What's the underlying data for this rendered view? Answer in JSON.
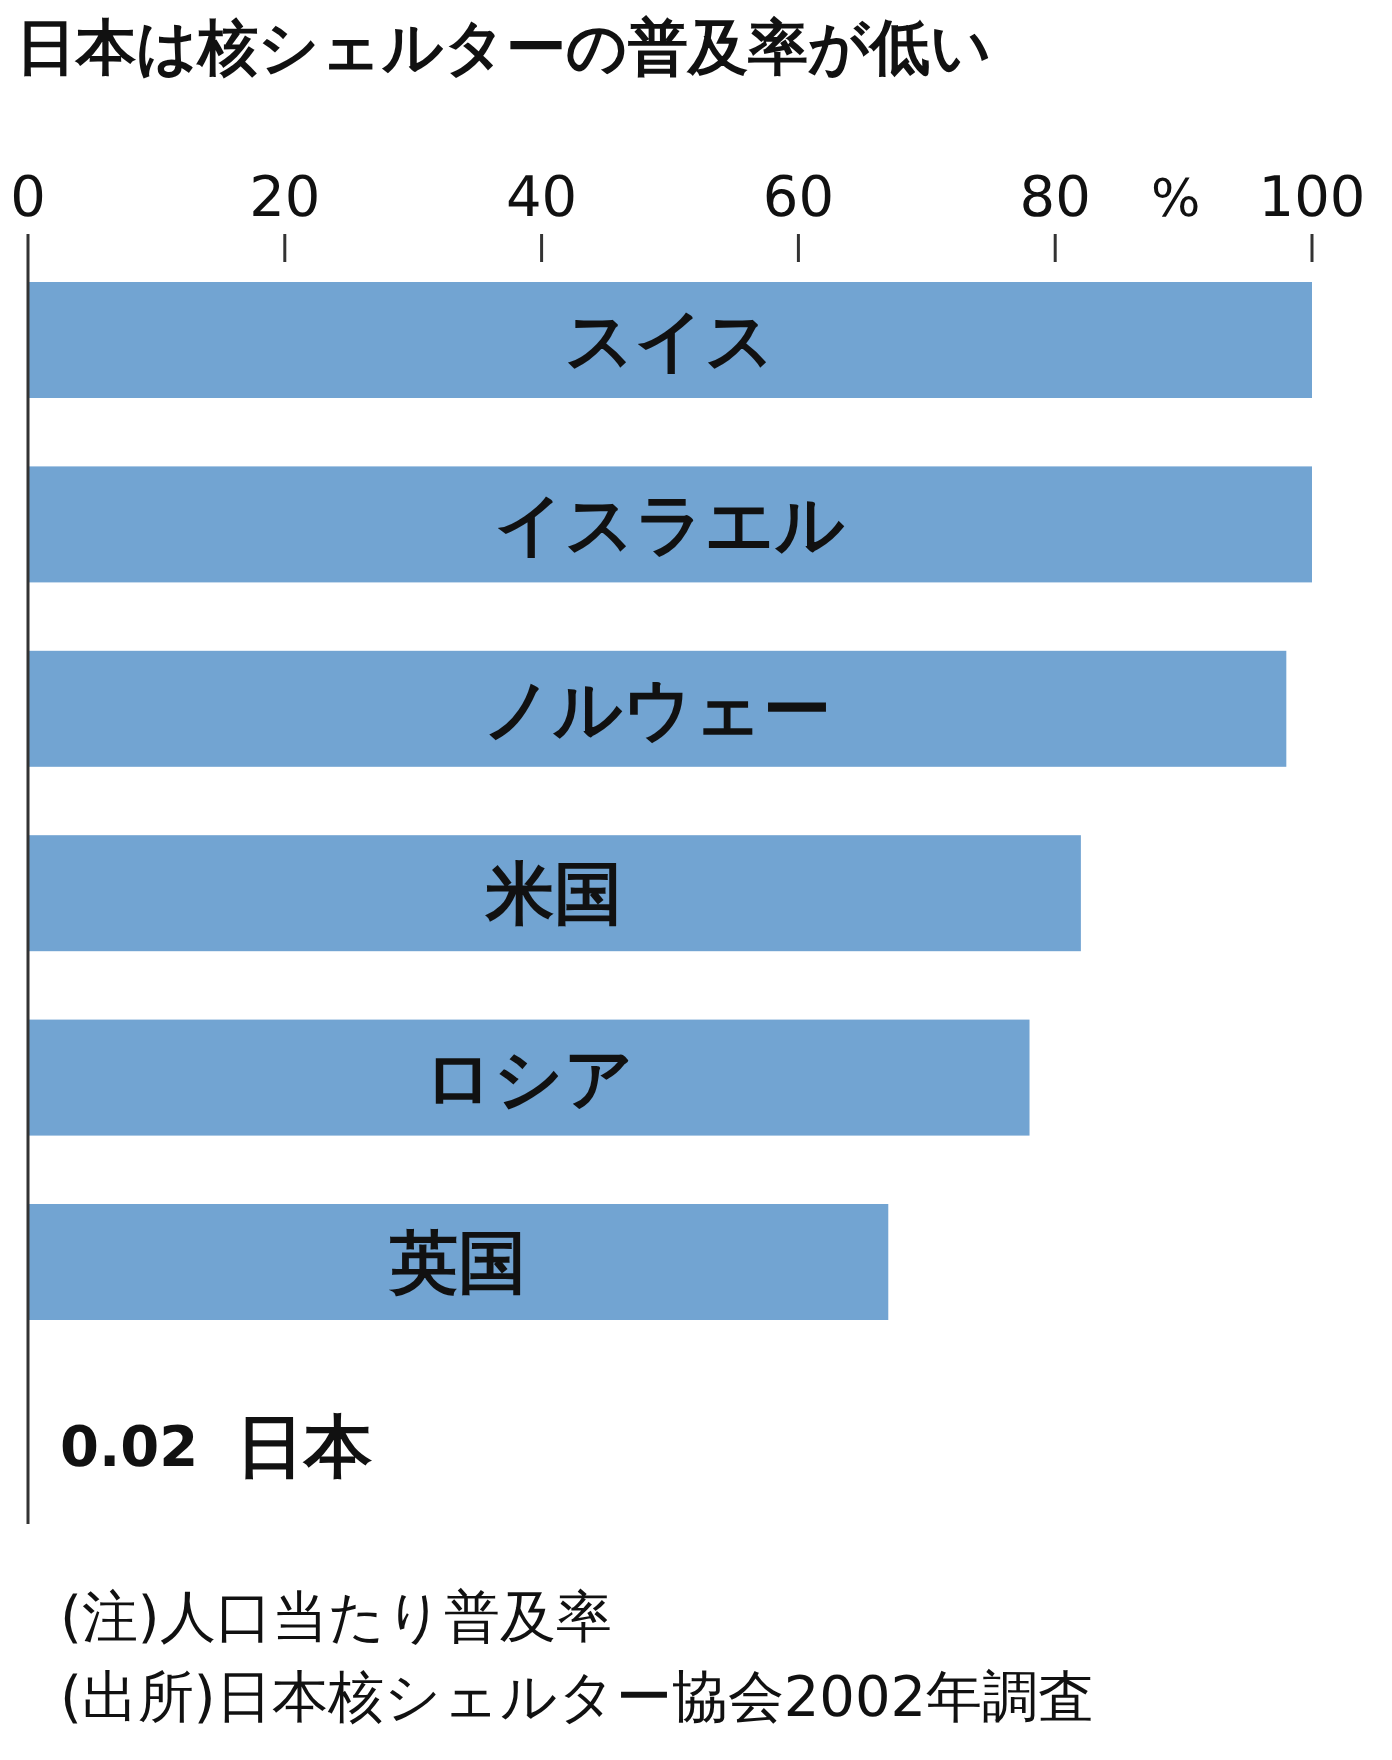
{
  "chart_data": {
    "type": "bar",
    "orientation": "horizontal",
    "title": "日本は核シェルターの普及率が低い",
    "xlabel": "%",
    "categories": [
      "スイス",
      "イスラエル",
      "ノルウェー",
      "米国",
      "ロシア",
      "英国",
      "日本"
    ],
    "values": [
      100,
      100,
      98,
      82,
      78,
      67,
      0.02
    ],
    "value_labels": [
      null,
      null,
      null,
      null,
      null,
      null,
      "0.02"
    ],
    "color": "#72a4d2",
    "xlim": [
      0,
      100
    ],
    "xticks": [
      0,
      20,
      40,
      60,
      80,
      100
    ],
    "annotations": [
      "(注)人口当たり普及率",
      "(出所)日本核シェルター協会2002年調査"
    ]
  }
}
